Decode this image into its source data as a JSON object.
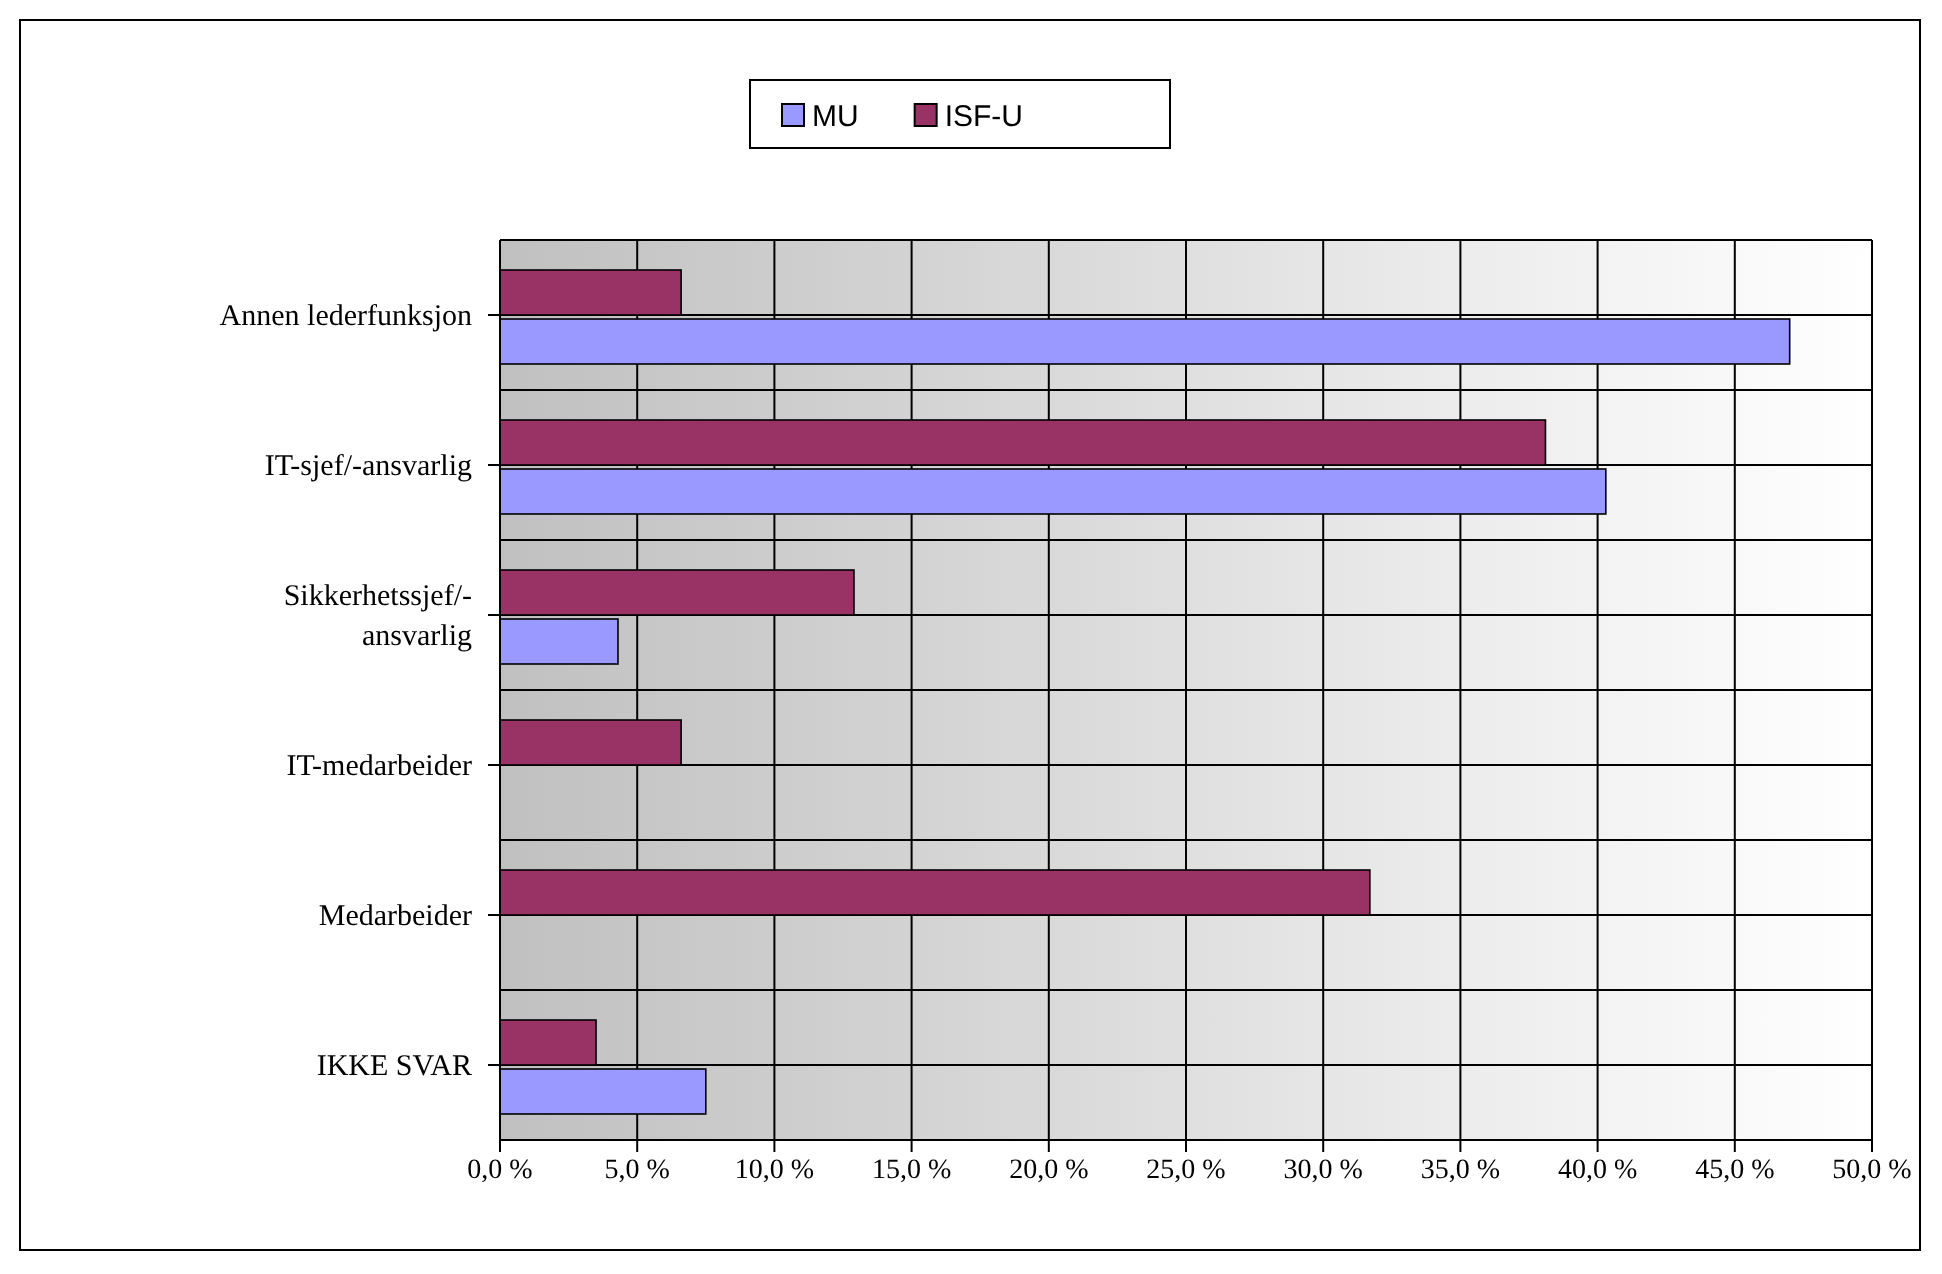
{
  "chart_data": {
    "type": "bar",
    "orientation": "horizontal",
    "categories": [
      "Annen lederfunksjon",
      "IT-sjef/-ansvarlig",
      "Sikkerhetssjef/-\nansvarlig",
      "IT-medarbeider",
      "Medarbeider",
      "IKKE SVAR"
    ],
    "series": [
      {
        "name": "MU",
        "color": "#9999ff",
        "values": [
          47,
          40.3,
          4.3,
          0,
          0,
          7.5
        ]
      },
      {
        "name": "ISF-U",
        "color": "#993366",
        "values": [
          6.6,
          38.1,
          12.9,
          6.6,
          31.7,
          3.5
        ]
      }
    ],
    "xlim": [
      0,
      50
    ],
    "xticks": [
      {
        "value": 0,
        "label": "0,0 %"
      },
      {
        "value": 5,
        "label": "5,0 %"
      },
      {
        "value": 10,
        "label": "10,0 %"
      },
      {
        "value": 15,
        "label": "15,0 %"
      },
      {
        "value": 20,
        "label": "20,0 %"
      },
      {
        "value": 25,
        "label": "25,0 %"
      },
      {
        "value": 30,
        "label": "30,0 %"
      },
      {
        "value": 35,
        "label": "35,0 %"
      },
      {
        "value": 40,
        "label": "40,0 %"
      },
      {
        "value": 45,
        "label": "45,0 %"
      },
      {
        "value": 50,
        "label": "50,0 %"
      }
    ],
    "grid": true,
    "legend": "top"
  }
}
